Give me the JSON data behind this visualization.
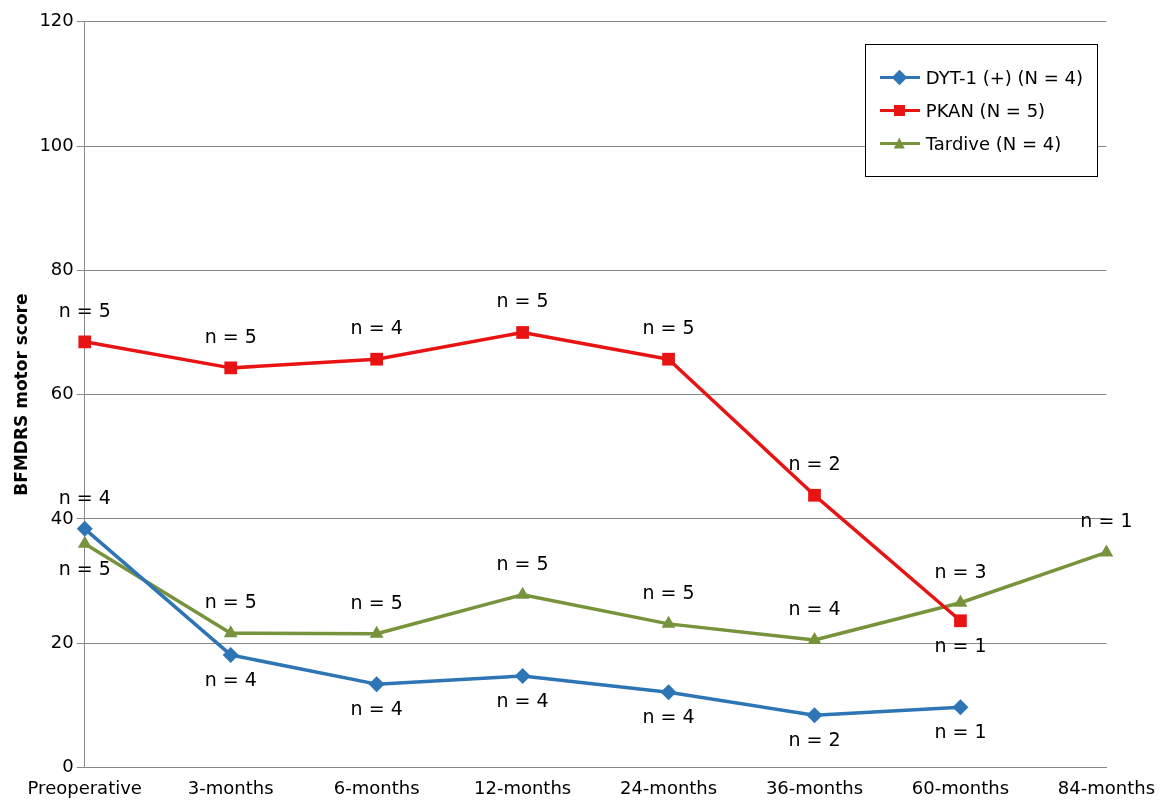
{
  "chart_data": {
    "type": "line",
    "ylabel": "BFMDRS motor score",
    "categories": [
      "Preoperative",
      "3-months",
      "6-months",
      "12-months",
      "24-months",
      "36-months",
      "60-months",
      "84-months"
    ],
    "series": [
      {
        "name": "DYT-1 (+) (N = 4)",
        "color": "#2e75b6",
        "marker": "diamond",
        "values": [
          38.4,
          18.1,
          13.4,
          14.7,
          12.1,
          8.4,
          9.7,
          null
        ]
      },
      {
        "name": "PKAN (N = 5)",
        "color": "#e81414",
        "marker": "square",
        "values": [
          68.5,
          64.3,
          65.7,
          70.0,
          65.7,
          43.8,
          23.6,
          null
        ]
      },
      {
        "name": "Tardive (N = 4)",
        "color": "#77933c",
        "marker": "triangle",
        "values": [
          36.0,
          21.6,
          21.5,
          27.8,
          23.1,
          20.5,
          26.5,
          34.6
        ]
      }
    ],
    "ylim": [
      0,
      120
    ],
    "yticks": [
      0,
      20,
      40,
      60,
      80,
      100,
      120
    ],
    "grid": "y",
    "legend": "top right",
    "line_style": "solid",
    "annotations": [
      {
        "text": "n = 5",
        "x": "Preoperative",
        "y": 68.5
      },
      {
        "text": "n = 5",
        "x": "3-months",
        "y": 64.3
      },
      {
        "text": "n = 4",
        "x": "6-months",
        "y": 65.7
      },
      {
        "text": "n = 5",
        "x": "12-months",
        "y": 70.0
      },
      {
        "text": "n = 5",
        "x": "24-months",
        "y": 65.7
      },
      {
        "text": "n = 2",
        "x": "36-months",
        "y": 43.8
      },
      {
        "text": "n = 1",
        "x": "60-months",
        "y": 23.6
      },
      {
        "text": "n = 4",
        "x": "Preoperative",
        "y": 38.4
      },
      {
        "text": "n = 4",
        "x": "3-months",
        "y": 18.1
      },
      {
        "text": "n = 4",
        "x": "6-months",
        "y": 13.4
      },
      {
        "text": "n = 4",
        "x": "12-months",
        "y": 14.7
      },
      {
        "text": "n = 4",
        "x": "24-months",
        "y": 12.1
      },
      {
        "text": "n = 2",
        "x": "36-months",
        "y": 8.4
      },
      {
        "text": "n = 1",
        "x": "60-months",
        "y": 9.7
      },
      {
        "text": "n = 5",
        "x": "Preoperative",
        "y": 36.0
      },
      {
        "text": "n = 5",
        "x": "3-months",
        "y": 21.6
      },
      {
        "text": "n = 5",
        "x": "6-months",
        "y": 21.5
      },
      {
        "text": "n = 5",
        "x": "12-months",
        "y": 27.8
      },
      {
        "text": "n = 5",
        "x": "24-months",
        "y": 23.1
      },
      {
        "text": "n = 4",
        "x": "36-months",
        "y": 20.5
      },
      {
        "text": "n = 3",
        "x": "60-months",
        "y": 26.5
      },
      {
        "text": "n = 1",
        "x": "84-months",
        "y": 34.6
      }
    ]
  }
}
